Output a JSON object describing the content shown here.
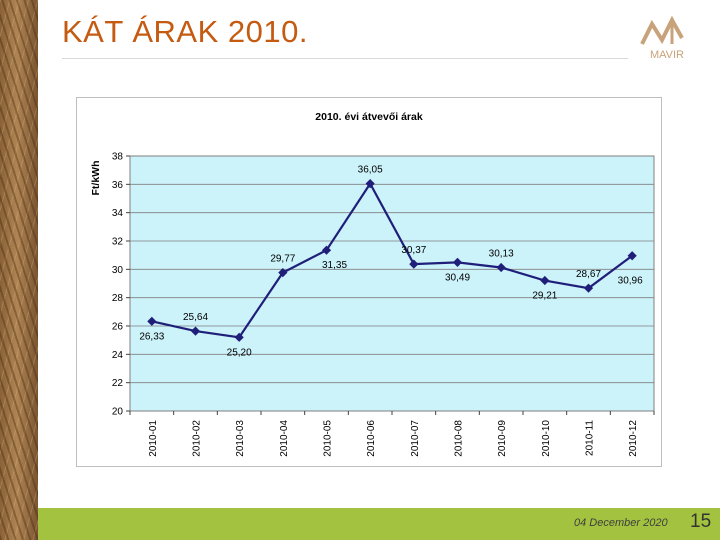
{
  "slide": {
    "title": "KÁT ÁRAK 2010.",
    "logo_text": "MAVIR",
    "footer_date": "04 December 2020",
    "page_number": "15"
  },
  "colors": {
    "title": "#c55a11",
    "plot_bg": "#ccf2fa",
    "line": "#1f1f7a",
    "footer": "#a3c23f"
  },
  "chart_data": {
    "type": "line",
    "title": "2010. évi átvevői árak",
    "xlabel": "",
    "ylabel": "Ft/kWh",
    "ylim": [
      20,
      38
    ],
    "yticks": [
      20,
      22,
      24,
      26,
      28,
      30,
      32,
      34,
      36,
      38
    ],
    "grid": true,
    "legend": "none",
    "categories": [
      "2010-01",
      "2010-02",
      "2010-03",
      "2010-04",
      "2010-05",
      "2010-06",
      "2010-07",
      "2010-08",
      "2010-09",
      "2010-10",
      "2010-11",
      "2010-12"
    ],
    "values": [
      26.33,
      25.64,
      25.2,
      29.77,
      31.35,
      36.05,
      30.37,
      30.49,
      30.13,
      29.21,
      28.67,
      30.96
    ],
    "labels": [
      "26,33",
      "25,64",
      "25,20",
      "29,77",
      "31,35",
      "36,05",
      "30,37",
      "30,49",
      "30,13",
      "29,21",
      "28,67",
      "30,96"
    ]
  }
}
